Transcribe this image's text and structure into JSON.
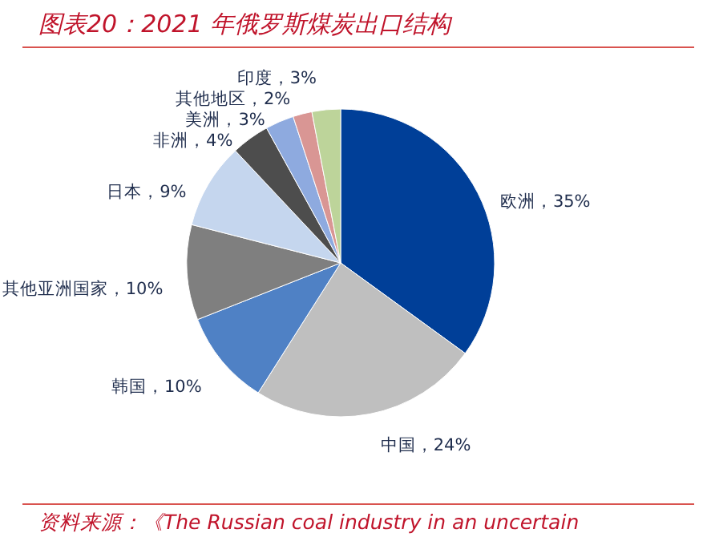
{
  "chart_data": {
    "type": "pie",
    "title": "图表20：2021 年俄罗斯煤炭出口结构",
    "categories": [
      "欧洲",
      "中国",
      "韩国",
      "其他亚洲国家",
      "日本",
      "非洲",
      "美洲",
      "其他地区",
      "印度"
    ],
    "values": [
      35,
      24,
      10,
      10,
      9,
      4,
      3,
      2,
      3
    ],
    "colors": [
      "#003f98",
      "#bfbfbf",
      "#4f81c5",
      "#7f7f7f",
      "#c5d6ee",
      "#4d4d4d",
      "#8eaadf",
      "#d99694",
      "#bdd49a"
    ],
    "value_labels": [
      "35%",
      "24%",
      "10%",
      "10%",
      "9%",
      "4%",
      "3%",
      "2%",
      "3%"
    ],
    "annotations": [
      "资料来源：《The Russian coal industry in an uncertain"
    ]
  }
}
